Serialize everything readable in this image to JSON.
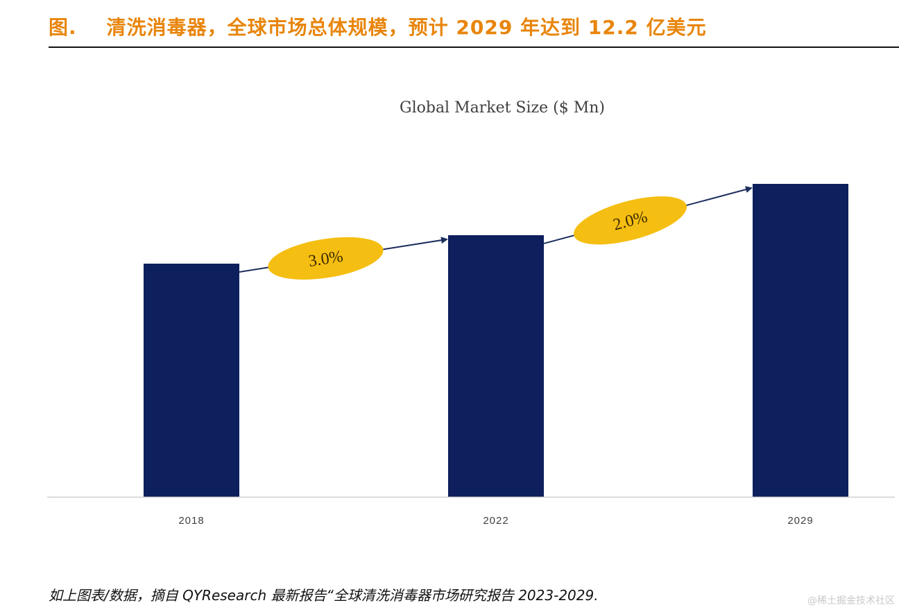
{
  "figure": {
    "title": "图.    清洗消毒器，全球市场总体规模，预计 2029 年达到 12.2 亿美元",
    "source_note": "如上图表/数据，摘自 QYResearch 最新报告“全球清洗消毒器市场研究报告 2023-2029.",
    "watermark": "@稀土掘金技术社区"
  },
  "colors": {
    "title": "#e8850c",
    "bar": "#0d1f5c",
    "ellipse": "#f5be12",
    "arrow": "#1c2e5e",
    "axis": "#d0d0d0"
  },
  "chart_data": {
    "type": "bar",
    "title": "Global Market Size ($ Mn)",
    "xlabel": "",
    "ylabel": "",
    "categories": [
      "2018",
      "2022",
      "2029"
    ],
    "values": [
      909,
      1020,
      1220
    ],
    "values_note": "Only 1220 ($ Mn, 2029) is stated in the figure title (12.2 亿美元). 2018 and 2022 are estimated from bar heights relative to the 2029 bar; the chart has no y-axis scale, so these are approximate.",
    "values_estimated": [
      true,
      true,
      false
    ],
    "ylim": [
      0,
      1220
    ],
    "grid": false,
    "legend": "none",
    "annotations": [
      {
        "from": "2018",
        "to": "2022",
        "label": "3.0%"
      },
      {
        "from": "2022",
        "to": "2029",
        "label": "2.0%"
      }
    ]
  }
}
